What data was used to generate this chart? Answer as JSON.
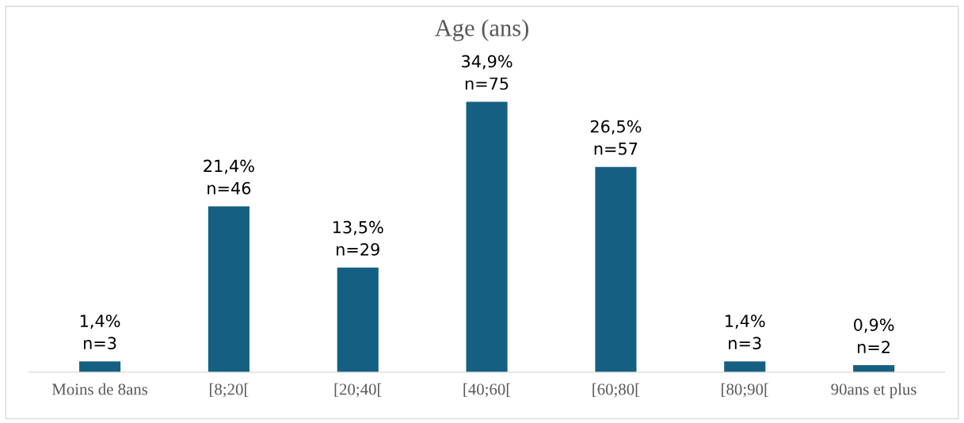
{
  "chart_data": {
    "type": "bar",
    "title": "Age (ans)",
    "categories": [
      "Moins de 8ans",
      "[8;20[",
      "[20;40[",
      "[40;60[",
      "[60;80[",
      "[80;90[",
      "90ans et plus"
    ],
    "values": [
      1.4,
      21.4,
      13.5,
      34.9,
      26.5,
      1.4,
      0.9
    ],
    "value_labels": [
      "1,4%\nn=3",
      "21,4%\nn=46",
      "13,5%\nn=29",
      "34,9%\nn=75",
      "26,5%\nn=57",
      "1,4%\nn=3",
      "0,9%\nn=2"
    ],
    "color": "#156082",
    "grid": false,
    "legend": false
  }
}
